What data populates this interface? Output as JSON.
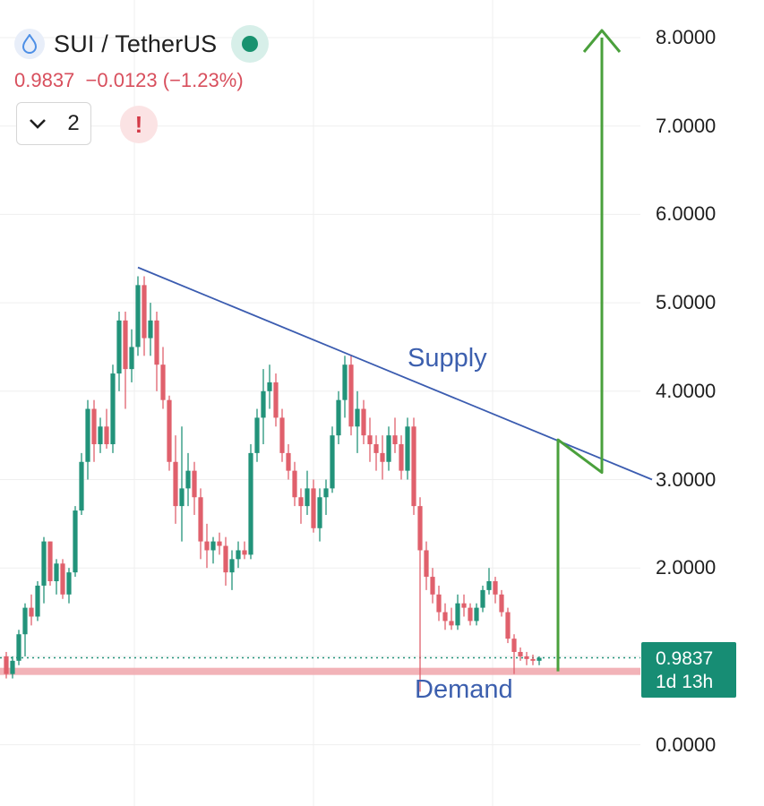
{
  "header": {
    "symbol": "SUI / TetherUS",
    "price_change": "0.9837  −0.0123 (−1.23%)",
    "interval_label": "2",
    "alert_glyph": "!",
    "coin_icon": "water-drop-icon",
    "status_icon": "market-open-dot-icon"
  },
  "price_tag": {
    "price": "0.9837",
    "countdown": "1d 13h"
  },
  "colors": {
    "up": "#22937a",
    "down": "#e0606c",
    "trendline": "#3b5cb0",
    "projection": "#4aa03c",
    "demand_zone": "#f0a6ab",
    "grid": "#efefef",
    "price_tag": "#178d74"
  },
  "chart_data": {
    "type": "candlestick",
    "title": "SUI / TetherUS",
    "y_axis": {
      "ticks": [
        "8.0000",
        "7.0000",
        "6.0000",
        "5.0000",
        "4.0000",
        "3.0000",
        "2.0000",
        "0.0000"
      ],
      "tick_values": [
        8,
        7,
        6,
        5,
        4,
        3,
        2,
        0
      ],
      "range": [
        -0.6,
        8.4
      ],
      "position": "right"
    },
    "grid": true,
    "last_price": 0.9837,
    "candles": [
      [
        1.0,
        1.05,
        0.75,
        0.8
      ],
      [
        0.8,
        1.0,
        0.75,
        0.95
      ],
      [
        0.95,
        1.3,
        0.9,
        1.25
      ],
      [
        1.25,
        1.6,
        1.0,
        1.55
      ],
      [
        1.55,
        1.7,
        1.35,
        1.45
      ],
      [
        1.45,
        1.85,
        1.4,
        1.8
      ],
      [
        1.8,
        2.35,
        1.6,
        2.3
      ],
      [
        2.3,
        2.3,
        1.8,
        1.85
      ],
      [
        1.85,
        2.1,
        1.7,
        2.05
      ],
      [
        2.05,
        2.1,
        1.65,
        1.7
      ],
      [
        1.7,
        2.0,
        1.6,
        1.95
      ],
      [
        1.95,
        2.7,
        1.9,
        2.65
      ],
      [
        2.65,
        3.3,
        2.6,
        3.2
      ],
      [
        3.2,
        3.9,
        3.0,
        3.8
      ],
      [
        3.8,
        3.9,
        3.2,
        3.4
      ],
      [
        3.4,
        3.7,
        3.3,
        3.6
      ],
      [
        3.6,
        3.8,
        3.35,
        3.4
      ],
      [
        3.4,
        4.3,
        3.3,
        4.2
      ],
      [
        4.2,
        4.9,
        4.0,
        4.8
      ],
      [
        4.8,
        4.9,
        3.8,
        4.25
      ],
      [
        4.25,
        4.7,
        4.1,
        4.5
      ],
      [
        4.5,
        5.3,
        4.4,
        5.2
      ],
      [
        5.2,
        5.3,
        4.4,
        4.6
      ],
      [
        4.6,
        5.0,
        4.4,
        4.8
      ],
      [
        4.8,
        4.9,
        4.0,
        4.3
      ],
      [
        4.3,
        4.5,
        3.8,
        3.9
      ],
      [
        3.9,
        3.95,
        3.1,
        3.2
      ],
      [
        3.2,
        3.5,
        2.5,
        2.7
      ],
      [
        2.7,
        3.6,
        2.3,
        2.9
      ],
      [
        2.9,
        3.3,
        2.7,
        3.1
      ],
      [
        3.1,
        3.2,
        2.6,
        2.8
      ],
      [
        2.8,
        2.9,
        2.1,
        2.3
      ],
      [
        2.3,
        2.5,
        2.0,
        2.2
      ],
      [
        2.2,
        2.35,
        2.05,
        2.3
      ],
      [
        2.3,
        2.4,
        2.15,
        2.25
      ],
      [
        2.25,
        2.35,
        1.8,
        1.95
      ],
      [
        1.95,
        2.2,
        1.75,
        2.1
      ],
      [
        2.1,
        2.3,
        2.0,
        2.2
      ],
      [
        2.2,
        2.3,
        2.1,
        2.15
      ],
      [
        2.15,
        3.4,
        2.1,
        3.3
      ],
      [
        3.3,
        3.8,
        3.2,
        3.7
      ],
      [
        3.7,
        4.25,
        3.4,
        4.0
      ],
      [
        4.0,
        4.3,
        3.8,
        4.1
      ],
      [
        4.1,
        4.2,
        3.6,
        3.7
      ],
      [
        3.7,
        3.8,
        3.2,
        3.3
      ],
      [
        3.3,
        3.4,
        3.0,
        3.1
      ],
      [
        3.1,
        3.2,
        2.7,
        2.8
      ],
      [
        2.8,
        2.9,
        2.5,
        2.7
      ],
      [
        2.7,
        3.1,
        2.6,
        2.9
      ],
      [
        2.9,
        3.0,
        2.4,
        2.45
      ],
      [
        2.45,
        2.9,
        2.3,
        2.8
      ],
      [
        2.8,
        3.0,
        2.6,
        2.9
      ],
      [
        2.9,
        3.6,
        2.85,
        3.5
      ],
      [
        3.5,
        4.0,
        3.4,
        3.9
      ],
      [
        3.9,
        4.4,
        3.7,
        4.3
      ],
      [
        4.3,
        4.4,
        3.5,
        3.6
      ],
      [
        3.6,
        4.0,
        3.3,
        3.8
      ],
      [
        3.8,
        3.9,
        3.4,
        3.5
      ],
      [
        3.5,
        3.7,
        3.2,
        3.4
      ],
      [
        3.4,
        3.5,
        3.1,
        3.3
      ],
      [
        3.3,
        3.5,
        3.0,
        3.2
      ],
      [
        3.2,
        3.6,
        3.1,
        3.5
      ],
      [
        3.5,
        3.7,
        3.3,
        3.4
      ],
      [
        3.4,
        3.5,
        3.0,
        3.1
      ],
      [
        3.1,
        3.7,
        3.0,
        3.6
      ],
      [
        3.6,
        3.7,
        2.6,
        2.7
      ],
      [
        2.7,
        2.8,
        0.6,
        2.2
      ],
      [
        2.2,
        2.3,
        1.75,
        1.9
      ],
      [
        1.9,
        2.0,
        1.6,
        1.7
      ],
      [
        1.7,
        1.8,
        1.4,
        1.5
      ],
      [
        1.5,
        1.6,
        1.3,
        1.4
      ],
      [
        1.4,
        1.55,
        1.3,
        1.35
      ],
      [
        1.35,
        1.7,
        1.3,
        1.6
      ],
      [
        1.6,
        1.7,
        1.45,
        1.55
      ],
      [
        1.55,
        1.6,
        1.35,
        1.4
      ],
      [
        1.4,
        1.6,
        1.35,
        1.55
      ],
      [
        1.55,
        1.8,
        1.5,
        1.75
      ],
      [
        1.75,
        2.0,
        1.7,
        1.85
      ],
      [
        1.85,
        1.9,
        1.6,
        1.7
      ],
      [
        1.7,
        1.75,
        1.45,
        1.5
      ],
      [
        1.5,
        1.55,
        1.15,
        1.2
      ],
      [
        1.2,
        1.25,
        0.8,
        1.05
      ],
      [
        1.05,
        1.1,
        0.95,
        1.0
      ],
      [
        1.0,
        1.05,
        0.9,
        0.97
      ],
      [
        0.97,
        1.02,
        0.9,
        0.95
      ],
      [
        0.95,
        1.0,
        0.9,
        0.9837
      ]
    ],
    "supply_line": {
      "label": "Supply",
      "from": [
        21,
        5.4
      ],
      "to": [
        103,
        3.0
      ]
    },
    "demand_level": {
      "label": "Demand",
      "value": 0.83
    },
    "projection_path": [
      [
        88,
        0.83
      ],
      [
        88,
        3.45
      ],
      [
        95,
        3.08
      ],
      [
        95,
        8.0
      ]
    ]
  }
}
